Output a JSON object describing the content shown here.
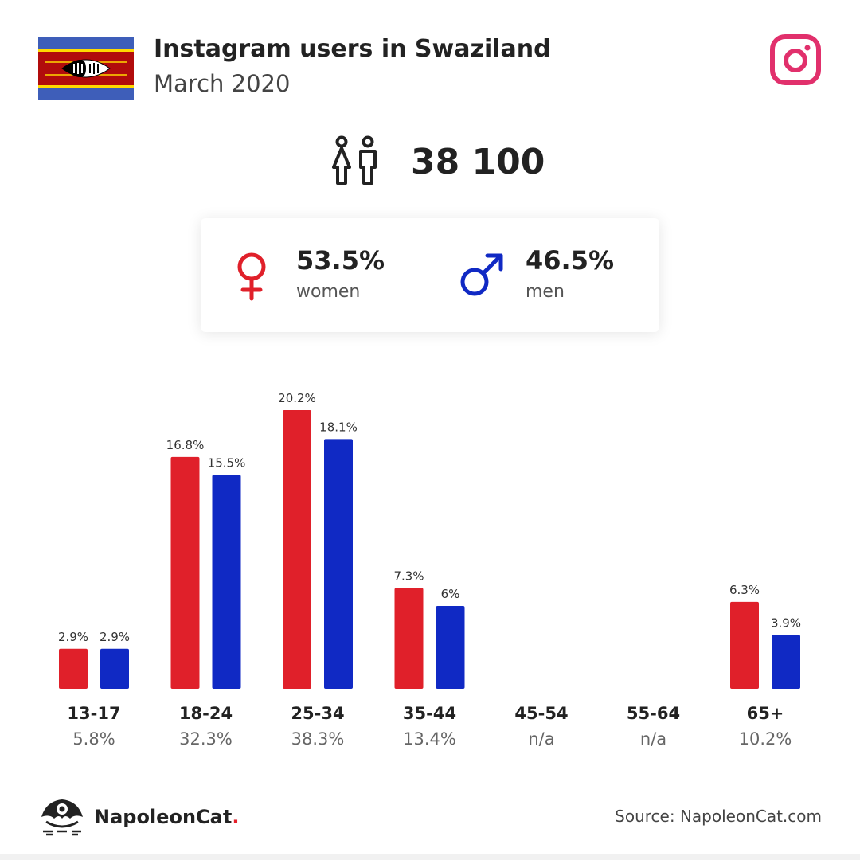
{
  "header": {
    "title": "Instagram users in Swaziland",
    "subtitle": "March 2020"
  },
  "total": {
    "value": "38 100",
    "icon": "people-icon"
  },
  "gender": {
    "women": {
      "pct": "53.5%",
      "label": "women",
      "icon": "female-icon",
      "color": "#e0202a"
    },
    "men": {
      "pct": "46.5%",
      "label": "men",
      "icon": "male-icon",
      "color": "#1029c4"
    }
  },
  "colors": {
    "women": "#e0202a",
    "men": "#1029c4",
    "instagram": "#e1306c"
  },
  "chart_data": {
    "type": "bar",
    "categories": [
      "13-17",
      "18-24",
      "25-34",
      "35-44",
      "45-54",
      "55-64",
      "65+"
    ],
    "category_totals": [
      "5.8%",
      "32.3%",
      "38.3%",
      "13.4%",
      "n/a",
      "n/a",
      "10.2%"
    ],
    "series": [
      {
        "values": [
          2.9,
          16.8,
          20.2,
          7.3,
          null,
          null,
          6.3
        ],
        "labels": [
          "2.9%",
          "16.8%",
          "20.2%",
          "7.3%",
          "",
          "",
          "6.3%"
        ],
        "color": "#e0202a"
      },
      {
        "values": [
          2.9,
          15.5,
          18.1,
          6,
          null,
          null,
          3.9
        ],
        "labels": [
          "2.9%",
          "15.5%",
          "18.1%",
          "6%",
          "",
          "",
          "3.9%"
        ],
        "color": "#1029c4"
      }
    ],
    "ylim": [
      0,
      20.2
    ],
    "grid": false
  },
  "footer": {
    "brand_name": "NapoleonCat",
    "brand_dot": ".",
    "source": "Source: NapoleonCat.com"
  }
}
